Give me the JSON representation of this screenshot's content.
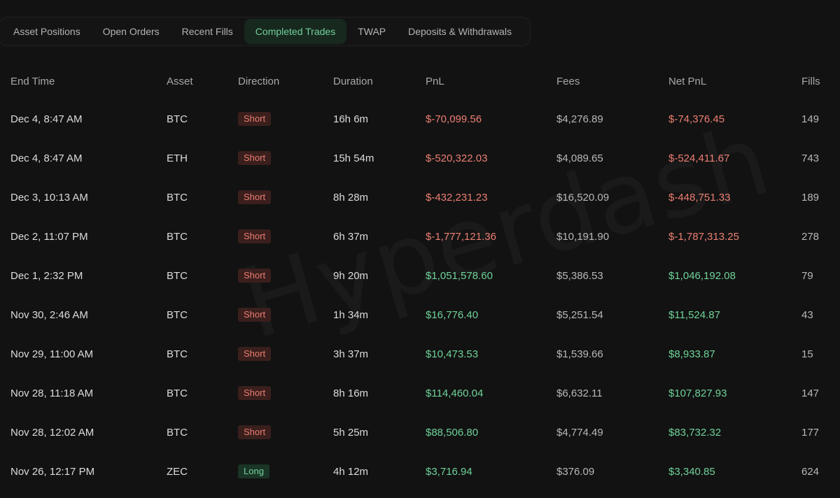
{
  "tabs": [
    {
      "label": "Asset Positions",
      "active": false
    },
    {
      "label": "Open Orders",
      "active": false
    },
    {
      "label": "Recent Fills",
      "active": false
    },
    {
      "label": "Completed Trades",
      "active": true
    },
    {
      "label": "TWAP",
      "active": false
    },
    {
      "label": "Deposits & Withdrawals",
      "active": false
    }
  ],
  "watermark": "Hyperdash",
  "columns": {
    "end_time": "End Time",
    "asset": "Asset",
    "direction": "Direction",
    "duration": "Duration",
    "pnl": "PnL",
    "fees": "Fees",
    "net_pnl": "Net PnL",
    "fills": "Fills"
  },
  "rows": [
    {
      "end_time": "Dec 4, 8:47 AM",
      "asset": "BTC",
      "direction": "Short",
      "duration": "16h 6m",
      "pnl": "$-70,099.56",
      "fees": "$4,276.89",
      "net_pnl": "$-74,376.45",
      "fills": "149"
    },
    {
      "end_time": "Dec 4, 8:47 AM",
      "asset": "ETH",
      "direction": "Short",
      "duration": "15h 54m",
      "pnl": "$-520,322.03",
      "fees": "$4,089.65",
      "net_pnl": "$-524,411.67",
      "fills": "743"
    },
    {
      "end_time": "Dec 3, 10:13 AM",
      "asset": "BTC",
      "direction": "Short",
      "duration": "8h 28m",
      "pnl": "$-432,231.23",
      "fees": "$16,520.09",
      "net_pnl": "$-448,751.33",
      "fills": "189"
    },
    {
      "end_time": "Dec 2, 11:07 PM",
      "asset": "BTC",
      "direction": "Short",
      "duration": "6h 37m",
      "pnl": "$-1,777,121.36",
      "fees": "$10,191.90",
      "net_pnl": "$-1,787,313.25",
      "fills": "278"
    },
    {
      "end_time": "Dec 1, 2:32 PM",
      "asset": "BTC",
      "direction": "Short",
      "duration": "9h 20m",
      "pnl": "$1,051,578.60",
      "fees": "$5,386.53",
      "net_pnl": "$1,046,192.08",
      "fills": "79"
    },
    {
      "end_time": "Nov 30, 2:46 AM",
      "asset": "BTC",
      "direction": "Short",
      "duration": "1h 34m",
      "pnl": "$16,776.40",
      "fees": "$5,251.54",
      "net_pnl": "$11,524.87",
      "fills": "43"
    },
    {
      "end_time": "Nov 29, 11:00 AM",
      "asset": "BTC",
      "direction": "Short",
      "duration": "3h 37m",
      "pnl": "$10,473.53",
      "fees": "$1,539.66",
      "net_pnl": "$8,933.87",
      "fills": "15"
    },
    {
      "end_time": "Nov 28, 11:18 AM",
      "asset": "BTC",
      "direction": "Short",
      "duration": "8h 16m",
      "pnl": "$114,460.04",
      "fees": "$6,632.11",
      "net_pnl": "$107,827.93",
      "fills": "147"
    },
    {
      "end_time": "Nov 28, 12:02 AM",
      "asset": "BTC",
      "direction": "Short",
      "duration": "5h 25m",
      "pnl": "$88,506.80",
      "fees": "$4,774.49",
      "net_pnl": "$83,732.32",
      "fills": "177"
    },
    {
      "end_time": "Nov 26, 12:17 PM",
      "asset": "ZEC",
      "direction": "Long",
      "duration": "4h 12m",
      "pnl": "$3,716.94",
      "fees": "$376.09",
      "net_pnl": "$3,340.85",
      "fills": "624"
    }
  ],
  "colors": {
    "positive": "#6fd39a",
    "negative": "#ed7f73",
    "active_tab_bg": "#17281f",
    "active_tab_text": "#71d19a",
    "background": "#121212"
  }
}
